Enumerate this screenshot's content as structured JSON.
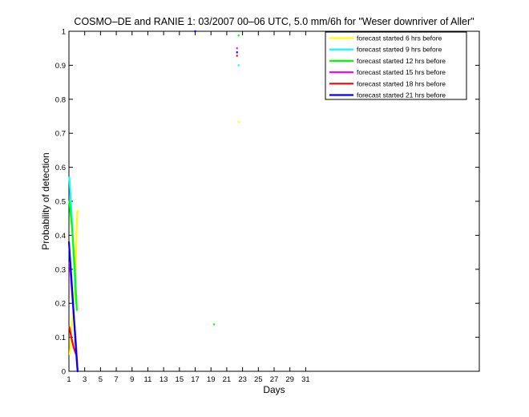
{
  "chart_data": {
    "type": "line",
    "title": "COSMO–DE and RANIE 1: 03/2007 00–06 UTC, 5.0 mm/6h for \"Weser downriver of Aller\"",
    "xlabel": "Days",
    "ylabel": "Probability of detection",
    "xlim": [
      1,
      53
    ],
    "ylim": [
      0,
      1
    ],
    "xticks": [
      1,
      3,
      5,
      7,
      9,
      11,
      13,
      15,
      17,
      19,
      21,
      23,
      25,
      27,
      29,
      31
    ],
    "yticks": [
      0,
      0.1,
      0.2,
      0.3,
      0.4,
      0.5,
      0.6,
      0.7,
      0.8,
      0.9,
      1
    ],
    "ytick_labels": [
      "0",
      "0.1",
      "0.2",
      "0.3",
      "0.4",
      "0.5",
      "0.6",
      "0.7",
      "0.8",
      "0.9",
      "1"
    ],
    "legend_position": "top-right",
    "grid": false,
    "series": [
      {
        "name": "forecast started 6 hrs before",
        "color": "#ffff00",
        "x": [
          1.1,
          1.4,
          1.8,
          2.05,
          2.2
        ],
        "y": [
          0.05,
          0.14,
          0.27,
          0.47,
          0.47
        ],
        "isolated": [
          {
            "x": 22.5,
            "y": 0.733
          }
        ]
      },
      {
        "name": "forecast started 9 hrs before",
        "color": "#00ffff",
        "x": [
          1.05,
          1.3,
          1.6,
          1.9
        ],
        "y": [
          0.57,
          0.48,
          0.34,
          0.2
        ],
        "isolated": [
          {
            "x": 22.5,
            "y": 0.9
          }
        ]
      },
      {
        "name": "forecast started 12 hrs before",
        "color": "#00ff00",
        "x": [
          1.05,
          1.4,
          1.75,
          2.0
        ],
        "y": [
          0.5,
          0.42,
          0.3,
          0.18
        ],
        "isolated": [
          {
            "x": 19.4,
            "y": 0.138
          },
          {
            "x": 22.5,
            "y": 0.988
          }
        ]
      },
      {
        "name": "forecast started 15 hrs before",
        "color": "#ff00ff",
        "x": [
          1.1,
          1.5,
          1.9,
          2.1
        ],
        "y": [
          0.32,
          0.2,
          0.08,
          0.0
        ],
        "isolated": [
          {
            "x": 22.3,
            "y": 0.95
          }
        ]
      },
      {
        "name": "forecast started 18 hrs before",
        "color": "#ff0000",
        "x": [
          1.05,
          1.3,
          1.6,
          1.9
        ],
        "y": [
          0.13,
          0.1,
          0.07,
          0.05
        ],
        "isolated": [
          {
            "x": 22.3,
            "y": 0.928
          }
        ]
      },
      {
        "name": "forecast started 21 hrs before",
        "color": "#0000ff",
        "x": [
          1.0,
          1.3,
          1.6,
          1.9,
          2.1
        ],
        "y": [
          0.38,
          0.28,
          0.17,
          0.06,
          0.0
        ],
        "isolated": [
          {
            "x": 17.0,
            "y": 1.0
          },
          {
            "x": 22.3,
            "y": 0.938
          }
        ]
      }
    ]
  }
}
